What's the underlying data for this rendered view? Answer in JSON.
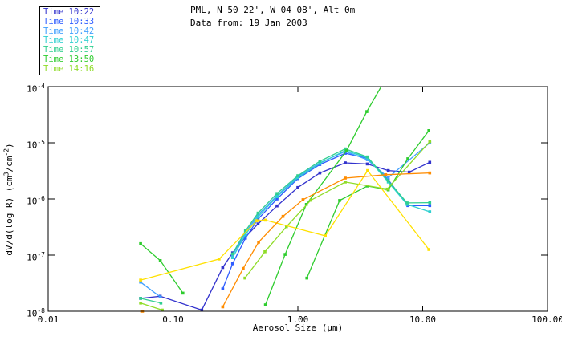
{
  "header": {
    "line1": "PML, N 50 22', W 04 08', Alt 0m",
    "line2": "Data from: 19 Jan 2003"
  },
  "legend": {
    "items": [
      {
        "label": "Time 10:22",
        "color": "#3232cd"
      },
      {
        "label": "Time 10:33",
        "color": "#2e5cff"
      },
      {
        "label": "Time 10:42",
        "color": "#3f9fff"
      },
      {
        "label": "Time 10:47",
        "color": "#2fd0d0"
      },
      {
        "label": "Time 10:57",
        "color": "#30cf8f"
      },
      {
        "label": "Time 13:50",
        "color": "#2ecc2e"
      },
      {
        "label": "Time 14:16",
        "color": "#8fdc28"
      }
    ]
  },
  "axes": {
    "xlabel": "Aerosol Size (μm)",
    "ylabel_parts": {
      "prefix": "dV/d(log R) (cm",
      "sup1": "3",
      "mid": "/cm",
      "sup2": "-2",
      "suffix": ")"
    }
  },
  "chart_data": {
    "type": "line",
    "title": "PML, N 50 22', W 04 08', Alt 0m",
    "subtitle": "Data from: 19 Jan 2003",
    "xlabel": "Aerosol Size (um)",
    "ylabel": "dV/d(log R) (cm3/cm-2)",
    "xscale": "log",
    "yscale": "log",
    "xlim": [
      0.01,
      100
    ],
    "ylim": [
      1e-08,
      0.0001
    ],
    "grid": false,
    "legend_position": "top-left",
    "x_ticks": [
      {
        "value": 0.01,
        "label": "0.01"
      },
      {
        "value": 0.1,
        "label": "0.10"
      },
      {
        "value": 1.0,
        "label": "1.00"
      },
      {
        "value": 10.0,
        "label": "10.00"
      },
      {
        "value": 100.0,
        "label": "100.00"
      }
    ],
    "y_ticks": [
      {
        "value": 0.0001,
        "base": "10",
        "exp": "-4"
      },
      {
        "value": 1e-05,
        "base": "10",
        "exp": "-5"
      },
      {
        "value": 1e-06,
        "base": "10",
        "exp": "-6"
      },
      {
        "value": 1e-07,
        "base": "10",
        "exp": "-7"
      },
      {
        "value": 1e-08,
        "base": "10",
        "exp": "-8"
      }
    ],
    "series": [
      {
        "name": "time-1022",
        "label": "Time 10:22",
        "color": "#3232cd",
        "segments": [
          [
            [
              0.055,
              1.7e-08
            ],
            [
              0.079,
              1.85e-08
            ],
            [
              0.17,
              1.05e-08
            ],
            [
              0.25,
              6e-08
            ],
            [
              0.3,
              1.1e-07
            ],
            [
              0.38,
              2.1e-07
            ],
            [
              0.48,
              3.6e-07
            ],
            [
              0.68,
              7.5e-07
            ],
            [
              1.0,
              1.6e-06
            ],
            [
              1.5,
              2.9e-06
            ],
            [
              2.4,
              4.4e-06
            ],
            [
              3.6,
              4.2e-06
            ],
            [
              5.3,
              3.2e-06
            ],
            [
              7.8,
              3e-06
            ],
            [
              11.4,
              4.5e-06
            ]
          ]
        ]
      },
      {
        "name": "time-1033",
        "label": "Time 10:33",
        "color": "#2e5cff",
        "segments": [
          [
            [
              0.25,
              2.5e-08
            ],
            [
              0.3,
              7e-08
            ],
            [
              0.38,
              2e-07
            ],
            [
              0.48,
              4.4e-07
            ],
            [
              0.68,
              1e-06
            ],
            [
              1.0,
              2.3e-06
            ],
            [
              1.5,
              4.1e-06
            ],
            [
              2.4,
              6.5e-06
            ],
            [
              3.6,
              5.3e-06
            ],
            [
              5.3,
              2.2e-06
            ],
            [
              7.6,
              7.6e-07
            ],
            [
              11.4,
              7.6e-07
            ]
          ]
        ]
      },
      {
        "name": "time-1042",
        "label": "Time 10:42",
        "color": "#3f9fff",
        "segments": [
          [
            [
              0.055,
              3.3e-08
            ],
            [
              0.079,
              1.8e-08
            ]
          ],
          [
            [
              0.3,
              1e-07
            ],
            [
              0.38,
              2.5e-07
            ],
            [
              0.48,
              5.2e-07
            ],
            [
              0.68,
              1.15e-06
            ],
            [
              1.0,
              2.5e-06
            ],
            [
              1.5,
              4.4e-06
            ],
            [
              2.4,
              7e-06
            ],
            [
              3.6,
              5e-06
            ],
            [
              5.3,
              2.4e-06
            ],
            [
              11.4,
              1e-05
            ]
          ]
        ]
      },
      {
        "name": "time-1047",
        "label": "Time 10:47",
        "color": "#2fd0d0",
        "segments": [
          [
            [
              0.3,
              9e-08
            ],
            [
              0.38,
              2.3e-07
            ],
            [
              0.48,
              4.8e-07
            ],
            [
              0.68,
              1.1e-06
            ],
            [
              1.0,
              2.4e-06
            ],
            [
              1.5,
              4.3e-06
            ],
            [
              2.4,
              7.3e-06
            ],
            [
              3.6,
              5.4e-06
            ],
            [
              5.3,
              2e-06
            ],
            [
              7.5,
              8e-07
            ],
            [
              11.4,
              5.9e-07
            ]
          ]
        ]
      },
      {
        "name": "time-1057",
        "label": "Time 10:57",
        "color": "#30cf8f",
        "segments": [
          [
            [
              0.055,
              1.7e-08
            ],
            [
              0.08,
              1.4e-08
            ]
          ],
          [
            [
              0.3,
              1.05e-07
            ],
            [
              0.38,
              2.7e-07
            ],
            [
              0.48,
              5.6e-07
            ],
            [
              0.68,
              1.25e-06
            ],
            [
              1.0,
              2.6e-06
            ],
            [
              1.5,
              4.7e-06
            ],
            [
              2.4,
              7.8e-06
            ],
            [
              3.6,
              5.6e-06
            ],
            [
              5.3,
              2.1e-06
            ],
            [
              7.5,
              8.5e-07
            ],
            [
              11.4,
              8.6e-07
            ]
          ]
        ]
      },
      {
        "name": "time-1350",
        "label": "Time 13:50",
        "color": "#2ecc2e",
        "segments": [
          [
            [
              0.055,
              1.6e-07
            ],
            [
              0.079,
              8e-08
            ],
            [
              0.12,
              2.1e-08
            ]
          ],
          [
            [
              0.55,
              1.3e-08
            ],
            [
              0.79,
              1.03e-07
            ],
            [
              1.17,
              8e-07
            ],
            [
              2.45,
              7.2e-06
            ],
            [
              3.57,
              3.6e-05
            ],
            [
              4.65,
              0.0001
            ]
          ]
        ]
      },
      {
        "name": "green-line-2",
        "label": "",
        "color": "#2ecc2e",
        "segments": [
          [
            [
              1.18,
              3.9e-08
            ],
            [
              2.16,
              9.4e-07
            ],
            [
              3.6,
              1.7e-06
            ],
            [
              5.3,
              1.45e-06
            ],
            [
              7.6,
              5.2e-06
            ],
            [
              11.2,
              1.65e-05
            ]
          ]
        ]
      },
      {
        "name": "time-1416",
        "label": "Time 14:16",
        "color": "#8fdc28",
        "segments": [
          [
            [
              0.055,
              1.4e-08
            ],
            [
              0.082,
              1.05e-08
            ]
          ],
          [
            [
              0.377,
              3.9e-08
            ],
            [
              0.545,
              1.15e-07
            ],
            [
              0.81,
              3.2e-07
            ],
            [
              1.27,
              9.5e-07
            ],
            [
              2.4,
              2e-06
            ],
            [
              5.2,
              1.5e-06
            ],
            [
              11.4,
              1.05e-05
            ]
          ]
        ]
      },
      {
        "name": "yellow-line",
        "label": "",
        "color": "#ffe100",
        "segments": [
          [
            [
              0.055,
              3.6e-08
            ],
            [
              0.234,
              8.5e-08
            ],
            [
              0.47,
              4.1e-07
            ],
            [
              0.55,
              4.2e-07
            ],
            [
              1.66,
              2.2e-07
            ],
            [
              3.62,
              3.2e-06
            ],
            [
              11.2,
              1.26e-07
            ]
          ]
        ]
      },
      {
        "name": "orange-line",
        "label": "",
        "color": "#ff8c00",
        "segments": [
          [
            [
              0.057,
              1e-08
            ]
          ],
          [
            [
              0.25,
              1.2e-08
            ],
            [
              0.365,
              5.8e-08
            ],
            [
              0.485,
              1.7e-07
            ],
            [
              0.76,
              4.9e-07
            ],
            [
              1.1,
              9.7e-07
            ],
            [
              2.4,
              2.35e-06
            ],
            [
              5.05,
              2.7e-06
            ],
            [
              11.4,
              2.9e-06
            ]
          ]
        ]
      }
    ]
  }
}
